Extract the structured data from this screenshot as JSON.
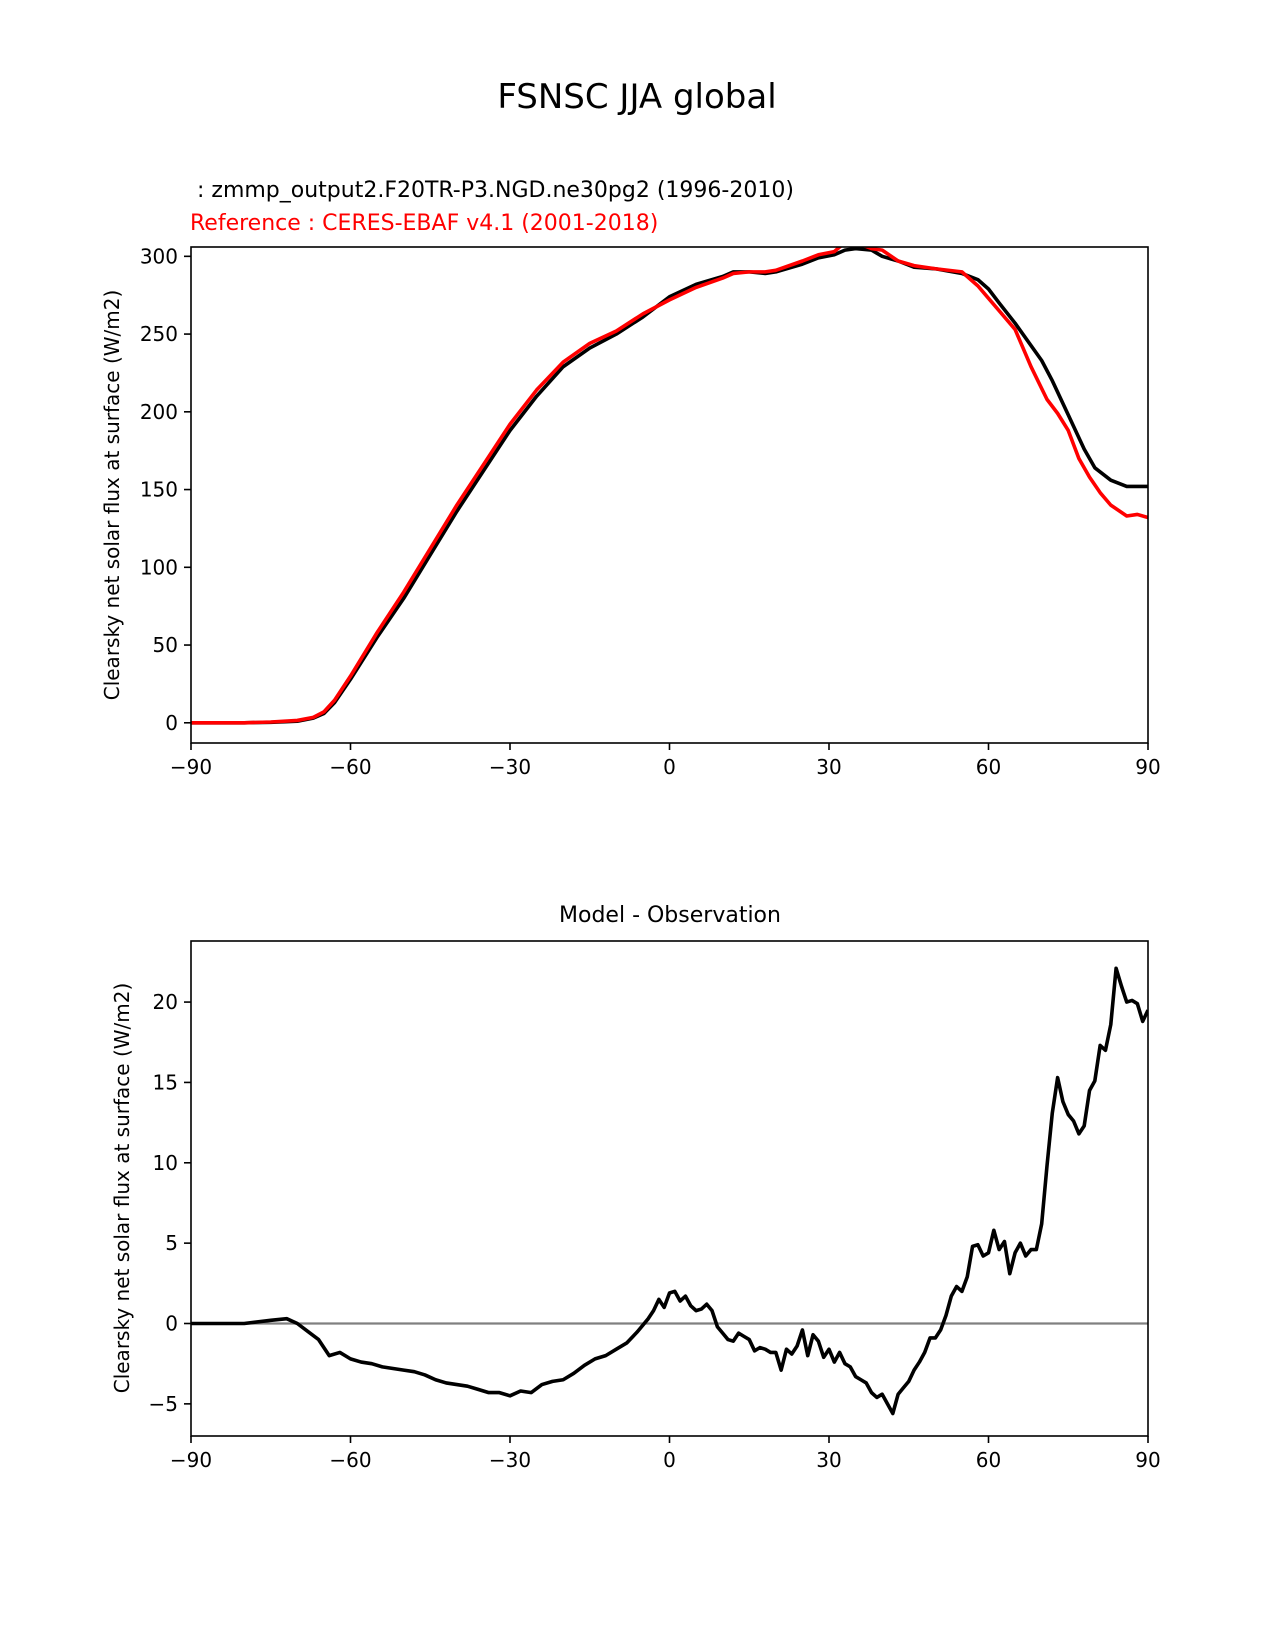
{
  "figure": {
    "suptitle": "FSNSC JJA global"
  },
  "colors": {
    "test": "#000000",
    "reference": "#ff0000",
    "zero_line": "#808080"
  },
  "chart_data": [
    {
      "type": "line",
      "test_label": " : zmmp_output2.F20TR-P3.NGD.ne30pg2 (1996-2010)",
      "ref_label": "Reference : CERES-EBAF v4.1 (2001-2018)",
      "ylabel": "Clearsky net solar flux at surface (W/m2)",
      "xlim": [
        -90,
        90
      ],
      "ylim": [
        -13,
        306
      ],
      "xticks": [
        -90,
        -60,
        -30,
        0,
        30,
        60,
        90
      ],
      "xtick_labels": [
        "−90",
        "−60",
        "−30",
        "0",
        "30",
        "60",
        "90"
      ],
      "yticks": [
        0,
        50,
        100,
        150,
        200,
        250,
        300
      ],
      "ytick_labels": [
        "0",
        "50",
        "100",
        "150",
        "200",
        "250",
        "300"
      ],
      "series": [
        {
          "role": "test",
          "x": [
            -90,
            -80,
            -75,
            -70,
            -67,
            -65,
            -63,
            -60,
            -55,
            -50,
            -45,
            -40,
            -35,
            -30,
            -25,
            -20,
            -15,
            -10,
            -5,
            0,
            5,
            10,
            12,
            15,
            18,
            20,
            25,
            28,
            31,
            33,
            35,
            38,
            40,
            43,
            46,
            50,
            55,
            58,
            60,
            62,
            65,
            70,
            72,
            75,
            78,
            80,
            83,
            86,
            90
          ],
          "y": [
            0,
            0,
            0.3,
            1,
            3,
            6,
            13,
            28,
            55,
            80,
            108,
            136,
            162,
            188,
            210,
            229,
            241,
            250,
            261,
            274,
            282,
            287,
            290,
            290,
            289,
            290,
            295,
            299,
            301,
            304,
            305,
            304,
            300,
            297,
            293,
            292,
            289,
            285,
            279,
            270,
            257,
            233,
            220,
            198,
            176,
            164,
            156,
            152,
            152
          ]
        },
        {
          "role": "reference",
          "x": [
            -90,
            -80,
            -75,
            -70,
            -67,
            -65,
            -63,
            -60,
            -55,
            -50,
            -45,
            -40,
            -35,
            -30,
            -25,
            -20,
            -15,
            -10,
            -5,
            0,
            5,
            10,
            12,
            15,
            18,
            20,
            25,
            28,
            31,
            33,
            35,
            38,
            40,
            43,
            46,
            50,
            55,
            58,
            60,
            62,
            65,
            68,
            71,
            73,
            75,
            77,
            79,
            81,
            83,
            86,
            88,
            90
          ],
          "y": [
            0,
            0,
            0.5,
            1.5,
            3.5,
            7,
            14.5,
            30,
            58,
            84,
            112,
            140,
            166,
            192,
            214,
            232,
            244,
            252,
            263,
            272,
            280,
            286,
            289,
            290,
            290,
            291,
            297,
            301,
            303,
            309,
            309,
            305,
            304,
            297,
            294,
            292,
            290,
            281,
            273,
            265,
            253,
            229,
            208,
            199,
            188,
            170,
            158,
            148,
            140,
            133,
            134,
            132
          ]
        }
      ]
    },
    {
      "type": "line",
      "title": "Model - Observation",
      "ylabel": "Clearsky net solar flux at surface (W/m2)",
      "xlim": [
        -90,
        90
      ],
      "ylim": [
        -7.0,
        23.8
      ],
      "xticks": [
        -90,
        -60,
        -30,
        0,
        30,
        60,
        90
      ],
      "xtick_labels": [
        "−90",
        "−60",
        "−30",
        "0",
        "30",
        "60",
        "90"
      ],
      "yticks": [
        -5,
        0,
        5,
        10,
        15,
        20
      ],
      "ytick_labels": [
        "−5",
        "0",
        "5",
        "10",
        "15",
        "20"
      ],
      "zero_line": 0,
      "series": [
        {
          "role": "difference",
          "x": [
            -90,
            -80,
            -75,
            -72,
            -70,
            -68,
            -66,
            -64,
            -62,
            -60,
            -58,
            -56,
            -54,
            -52,
            -50,
            -48,
            -46,
            -44,
            -42,
            -40,
            -38,
            -36,
            -34,
            -32,
            -30,
            -28,
            -26,
            -24,
            -22,
            -20,
            -18,
            -16,
            -14,
            -12,
            -10,
            -8,
            -6,
            -4,
            -3,
            -2,
            -1,
            0,
            1,
            2,
            3,
            4,
            5,
            6,
            7,
            8,
            9,
            10,
            11,
            12,
            13,
            14,
            15,
            16,
            17,
            18,
            19,
            20,
            21,
            22,
            23,
            24,
            25,
            26,
            27,
            28,
            29,
            30,
            31,
            32,
            33,
            34,
            35,
            36,
            37,
            38,
            39,
            40,
            41,
            42,
            43,
            44,
            45,
            46,
            47,
            48,
            49,
            50,
            51,
            52,
            53,
            54,
            55,
            56,
            57,
            58,
            59,
            60,
            61,
            62,
            63,
            64,
            65,
            66,
            67,
            68,
            69,
            70,
            71,
            72,
            73,
            74,
            75,
            76,
            77,
            78,
            79,
            80,
            81,
            82,
            83,
            84,
            85,
            86,
            87,
            88,
            89,
            90
          ],
          "y": [
            0,
            0,
            0.2,
            0.3,
            0,
            -0.5,
            -1,
            -2,
            -1.8,
            -2.2,
            -2.4,
            -2.5,
            -2.7,
            -2.8,
            -2.9,
            -3.0,
            -3.2,
            -3.5,
            -3.7,
            -3.8,
            -3.9,
            -4.1,
            -4.3,
            -4.3,
            -4.5,
            -4.2,
            -4.3,
            -3.8,
            -3.6,
            -3.5,
            -3.1,
            -2.6,
            -2.2,
            -2.0,
            -1.6,
            -1.2,
            -0.5,
            0.3,
            0.8,
            1.5,
            1.0,
            1.9,
            2.0,
            1.4,
            1.7,
            1.1,
            0.8,
            0.9,
            1.2,
            0.8,
            -0.2,
            -0.6,
            -1.0,
            -1.1,
            -0.6,
            -0.8,
            -1.0,
            -1.7,
            -1.5,
            -1.6,
            -1.8,
            -1.8,
            -2.9,
            -1.6,
            -1.9,
            -1.4,
            -0.4,
            -2.0,
            -0.7,
            -1.1,
            -2.1,
            -1.6,
            -2.4,
            -1.8,
            -2.5,
            -2.7,
            -3.3,
            -3.5,
            -3.7,
            -4.3,
            -4.6,
            -4.4,
            -5.0,
            -5.6,
            -4.4,
            -4.0,
            -3.6,
            -2.9,
            -2.4,
            -1.8,
            -0.9,
            -0.9,
            -0.4,
            0.5,
            1.7,
            2.3,
            2.0,
            2.9,
            4.8,
            4.9,
            4.2,
            4.4,
            5.8,
            4.6,
            5.1,
            3.1,
            4.4,
            5.0,
            4.2,
            4.6,
            4.6,
            6.2,
            9.8,
            13.1,
            15.3,
            13.8,
            13.0,
            12.6,
            11.8,
            12.3,
            14.5,
            15.1,
            17.3,
            17.0,
            18.6,
            22.1,
            21.0,
            20.0,
            20.1,
            19.9,
            18.8,
            19.5
          ]
        }
      ]
    }
  ]
}
